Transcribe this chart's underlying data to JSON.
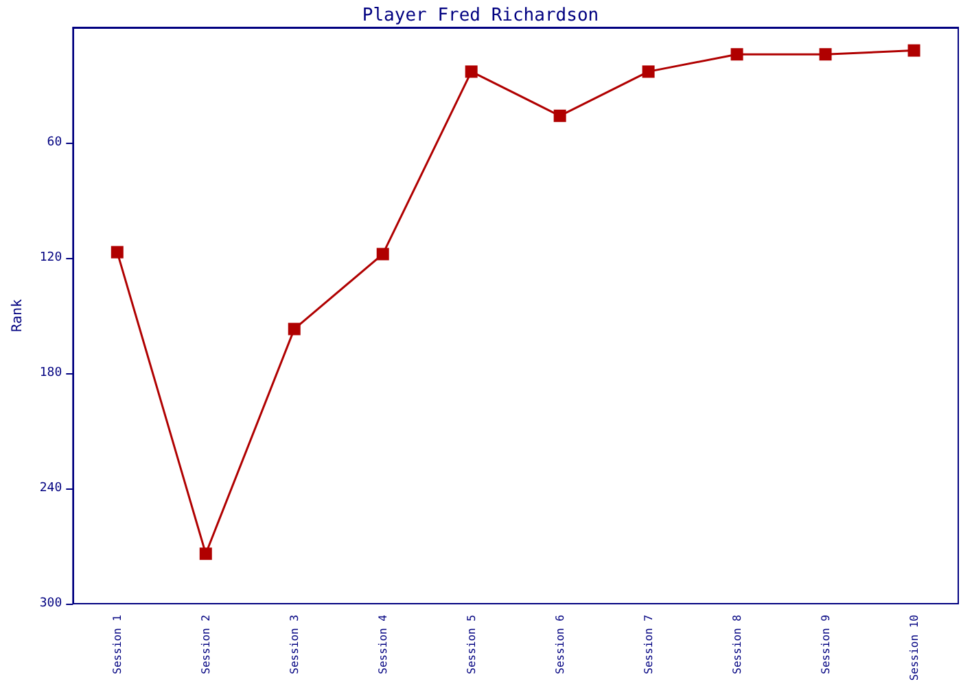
{
  "chart_data": {
    "type": "line",
    "title": "Player Fred Richardson",
    "ylabel": "Rank",
    "categories": [
      "Session 1",
      "Session 2",
      "Session 3",
      "Session 4",
      "Session 5",
      "Session 6",
      "Session 7",
      "Session 8",
      "Session 9",
      "Session 10"
    ],
    "series": [
      {
        "color": "#b00000",
        "values": [
          117,
          274,
          157,
          118,
          23,
          46,
          23,
          14,
          14,
          12
        ]
      }
    ],
    "ylim": [
      300,
      0
    ],
    "yticks": [
      60,
      120,
      180,
      240,
      300
    ],
    "grid": false,
    "marker": "square",
    "line_style": "solid"
  }
}
